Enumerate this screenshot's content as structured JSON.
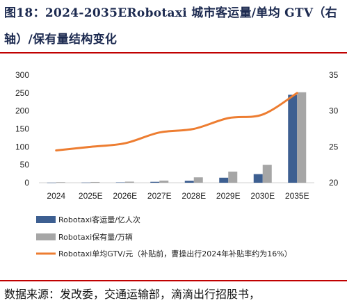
{
  "header": {
    "title_line1": "图18：2024-2035ERobotaxi 城市客运量/单均 GTV（右",
    "title_line2": "轴）/保有量结构变化"
  },
  "source": "数据来源：发改委，交通运输部，滴滴出行招股书，",
  "colors": {
    "title": "#1c2a50",
    "rule": "#c00000",
    "series_volume": "#3d5f91",
    "series_fleet": "#a6a6a6",
    "series_gtv": "#ed7d31"
  },
  "chart_data": {
    "type": "bar",
    "categories": [
      "2024",
      "2025E",
      "2026E",
      "2027E",
      "2028E",
      "2029E",
      "2030E",
      "2035E"
    ],
    "series": [
      {
        "name": "Robotaxi客运量/亿人次",
        "type": "bar",
        "axis": "left",
        "values": [
          0.3,
          0.5,
          0.9,
          2.5,
          5.5,
          14,
          24,
          245
        ]
      },
      {
        "name": "Robotaxi保有量/万辆",
        "type": "bar",
        "axis": "left",
        "values": [
          1.5,
          2,
          3,
          6,
          15,
          31,
          50,
          252
        ]
      },
      {
        "name": "Robotaxi单均GTV/元（补贴前，曹操出行2024年补贴率约为16%）",
        "type": "line",
        "axis": "right",
        "values": [
          24.5,
          25,
          25.5,
          27,
          27.5,
          29,
          29.5,
          32.5
        ]
      }
    ],
    "ylim_left": [
      0,
      300
    ],
    "yticks_left": [
      0,
      50,
      100,
      150,
      200,
      250,
      300
    ],
    "ylim_right": [
      20,
      35
    ],
    "yticks_right": [
      20,
      25,
      30,
      35
    ],
    "legend": "bottom"
  }
}
